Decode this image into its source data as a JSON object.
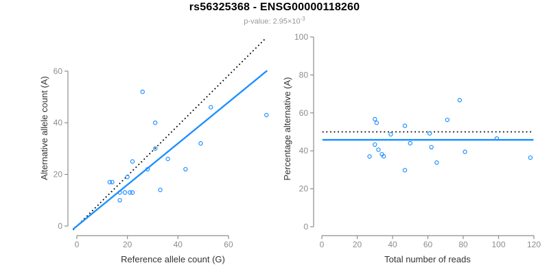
{
  "header": {
    "title": "rs56325368 - ENSG00000118260",
    "pvalue_prefix": "p-value: 2.95×10",
    "pvalue_exponent": "-3"
  },
  "colors": {
    "point_blue": "#1E90FF",
    "line_blue": "#1E90FF",
    "dotted_black": "#000000",
    "axis_gray": "#8C8C8C",
    "tick_text_gray": "#8C8C8C",
    "axis_title_dark": "#333333",
    "subtitle_gray": "#999999"
  },
  "chart_data": [
    {
      "type": "scatter",
      "name": "allele-counts-scatter",
      "xlabel": "Reference allele count (G)",
      "ylabel": "Alternative allele count (A)",
      "xticks": [
        0,
        20,
        40,
        60
      ],
      "yticks": [
        0,
        20,
        40,
        60
      ],
      "xlim": [
        0,
        78
      ],
      "ylim": [
        0,
        75
      ],
      "grid": false,
      "legend": null,
      "points": [
        [
          13,
          17
        ],
        [
          14,
          17
        ],
        [
          17,
          10
        ],
        [
          17,
          13
        ],
        [
          19,
          13
        ],
        [
          20,
          19
        ],
        [
          21,
          13
        ],
        [
          22,
          13
        ],
        [
          22,
          25
        ],
        [
          26,
          52
        ],
        [
          28,
          22
        ],
        [
          31,
          30
        ],
        [
          31,
          40
        ],
        [
          33,
          14
        ],
        [
          36,
          26
        ],
        [
          43,
          22
        ],
        [
          49,
          32
        ],
        [
          53,
          46
        ],
        [
          75,
          43
        ]
      ],
      "lines": [
        {
          "name": "identity-line",
          "meaning": "y = x (50% allelic ratio)",
          "style": "dotted",
          "color": "#000000",
          "width": 1.8,
          "from": [
            -1.5,
            -1.5
          ],
          "to": [
            74.3,
            72.3
          ]
        },
        {
          "name": "fit-line",
          "meaning": "fitted allelic ratio (slope ~0.8)",
          "style": "solid",
          "color": "#1E90FF",
          "width": 2.4,
          "from": [
            -1.5,
            -1.2
          ],
          "to": [
            75.3,
            60.2
          ]
        }
      ]
    },
    {
      "type": "scatter",
      "name": "percentage-vs-coverage-scatter",
      "xlabel": "Total number of reads",
      "ylabel": "Percentage alternative (A)",
      "xticks": [
        0,
        20,
        40,
        60,
        80,
        100,
        120
      ],
      "yticks": [
        0,
        20,
        40,
        60,
        80,
        100
      ],
      "xlim": [
        0,
        124
      ],
      "ylim": [
        0,
        104
      ],
      "grid": false,
      "legend": null,
      "points": [
        [
          30,
          56.7
        ],
        [
          31,
          54.8
        ],
        [
          27,
          37.0
        ],
        [
          30,
          43.3
        ],
        [
          32,
          40.6
        ],
        [
          39,
          48.7
        ],
        [
          34,
          38.2
        ],
        [
          35,
          37.1
        ],
        [
          47,
          53.2
        ],
        [
          78,
          66.7
        ],
        [
          50,
          44.0
        ],
        [
          61,
          49.2
        ],
        [
          71,
          56.3
        ],
        [
          47,
          29.8
        ],
        [
          62,
          41.9
        ],
        [
          65,
          33.8
        ],
        [
          81,
          39.5
        ],
        [
          99,
          46.5
        ],
        [
          118,
          36.4
        ]
      ],
      "lines": [
        {
          "name": "fifty-percent-line",
          "meaning": "50% reference line",
          "style": "dotted",
          "color": "#000000",
          "width": 1.8,
          "from": [
            0.3,
            50
          ],
          "to": [
            119.6,
            50
          ]
        },
        {
          "name": "mean-percentage-line",
          "meaning": "mean alternative percentage ~45.8%",
          "style": "solid",
          "color": "#1E90FF",
          "width": 2.6,
          "from": [
            0.3,
            45.8
          ],
          "to": [
            119.8,
            45.8
          ]
        }
      ]
    }
  ]
}
